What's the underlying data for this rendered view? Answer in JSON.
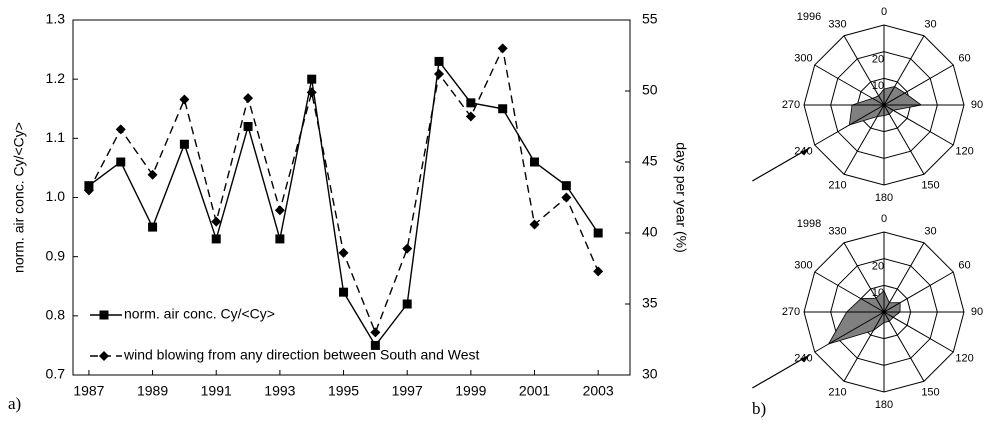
{
  "panel_labels": [
    "a)",
    "b)"
  ],
  "chart_data": [
    {
      "type": "line",
      "ylabel": "norm. air conc. Cy/<Cy>",
      "y2label": "days per year (%)",
      "x": [
        1987,
        1988,
        1989,
        1990,
        1991,
        1992,
        1993,
        1994,
        1995,
        1996,
        1997,
        1998,
        1999,
        2000,
        2001,
        2002,
        2003
      ],
      "xlim": [
        1986.5,
        2004
      ],
      "xticks": [
        1987,
        1989,
        1991,
        1993,
        1995,
        1997,
        1999,
        2001,
        2003
      ],
      "ylim": [
        0.7,
        1.3
      ],
      "yticks": [
        0.7,
        0.8,
        0.9,
        {
          "value": 1,
          "label": "1.0"
        },
        1.1,
        1.2,
        1.3
      ],
      "y2lim": [
        30,
        55
      ],
      "y2ticks": [
        30,
        35,
        40,
        45,
        50,
        55
      ],
      "series": [
        {
          "name": "norm. air conc. Cy/<Cy>",
          "color": "#000000",
          "marker": "square",
          "linestyle": "solid",
          "values": [
            1.02,
            1.06,
            0.95,
            1.09,
            0.93,
            1.12,
            0.93,
            1.2,
            0.84,
            0.75,
            0.82,
            1.23,
            1.16,
            1.15,
            1.06,
            1.02,
            0.94
          ]
        },
        {
          "name": "wind blowing from any direction between South and West",
          "color": "#000000",
          "marker": "diamond",
          "linestyle": "dashed",
          "axis": "y2",
          "values": [
            43.0,
            47.3,
            44.1,
            49.4,
            40.8,
            49.5,
            41.6,
            49.9,
            38.6,
            33.0,
            38.9,
            51.2,
            48.2,
            53.0,
            40.6,
            42.5,
            37.3
          ]
        }
      ]
    },
    {
      "type": "radar",
      "title": "1996",
      "categories": [
        "0",
        "30",
        "60",
        "90",
        "120",
        "150",
        "180",
        "210",
        "240",
        "270",
        "300",
        "330"
      ],
      "values": [
        6,
        8,
        9,
        14,
        4,
        4,
        4,
        5,
        15,
        12,
        5,
        4
      ],
      "rlim": [
        0,
        30
      ],
      "rticks": [
        10,
        20
      ],
      "color": "#808080"
    },
    {
      "type": "radar",
      "title": "1998",
      "categories": [
        "0",
        "30",
        "60",
        "90",
        "120",
        "150",
        "180",
        "210",
        "240",
        "270",
        "300",
        "330"
      ],
      "values": [
        8,
        4,
        7,
        6,
        4,
        4,
        4,
        8,
        24,
        14,
        10,
        6
      ],
      "rlim": [
        0,
        30
      ],
      "rticks": [
        10,
        20
      ],
      "color": "#808080"
    }
  ]
}
